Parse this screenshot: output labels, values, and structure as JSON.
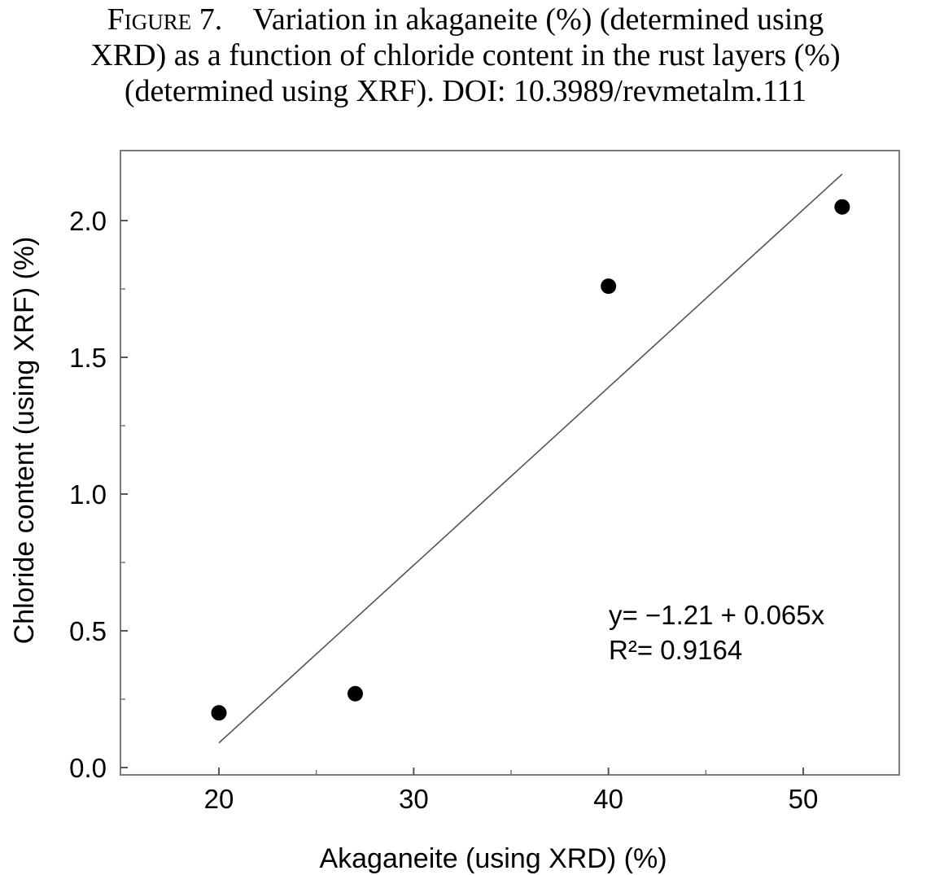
{
  "caption": {
    "label": "Figure 7.",
    "line1": "Variation in akaganeite (%) (determined using",
    "line2": "XRD) as a function of chloride content in the rust layers (%)",
    "line3": "(determined using XRF). DOI: 10.3989/revmetalm.111"
  },
  "chart_data": {
    "type": "scatter",
    "title": "",
    "xlabel": "Akaganeite (using XRD) (%)",
    "ylabel": "Chloride content (using XRF) (%)",
    "xlim": [
      15,
      55
    ],
    "ylim": [
      0,
      2.25
    ],
    "x_ticks": [
      20,
      30,
      40,
      50
    ],
    "x_tick_labels": [
      "20",
      "30",
      "40",
      "50"
    ],
    "y_ticks": [
      0,
      0.5,
      1.0,
      1.5,
      2.0
    ],
    "y_tick_labels": [
      "0.0",
      "0.5",
      "1.0",
      "1.5",
      "2.0"
    ],
    "grid": false,
    "points": [
      {
        "x": 20,
        "y": 0.2
      },
      {
        "x": 27,
        "y": 0.27
      },
      {
        "x": 40,
        "y": 1.76
      },
      {
        "x": 52,
        "y": 2.05
      }
    ],
    "trendline": {
      "intercept": -1.21,
      "slope": 0.065,
      "x_range": [
        20,
        52
      ]
    },
    "equation": "y= −1.21 + 0.065x",
    "r2_label": "R²= 0.9164"
  }
}
